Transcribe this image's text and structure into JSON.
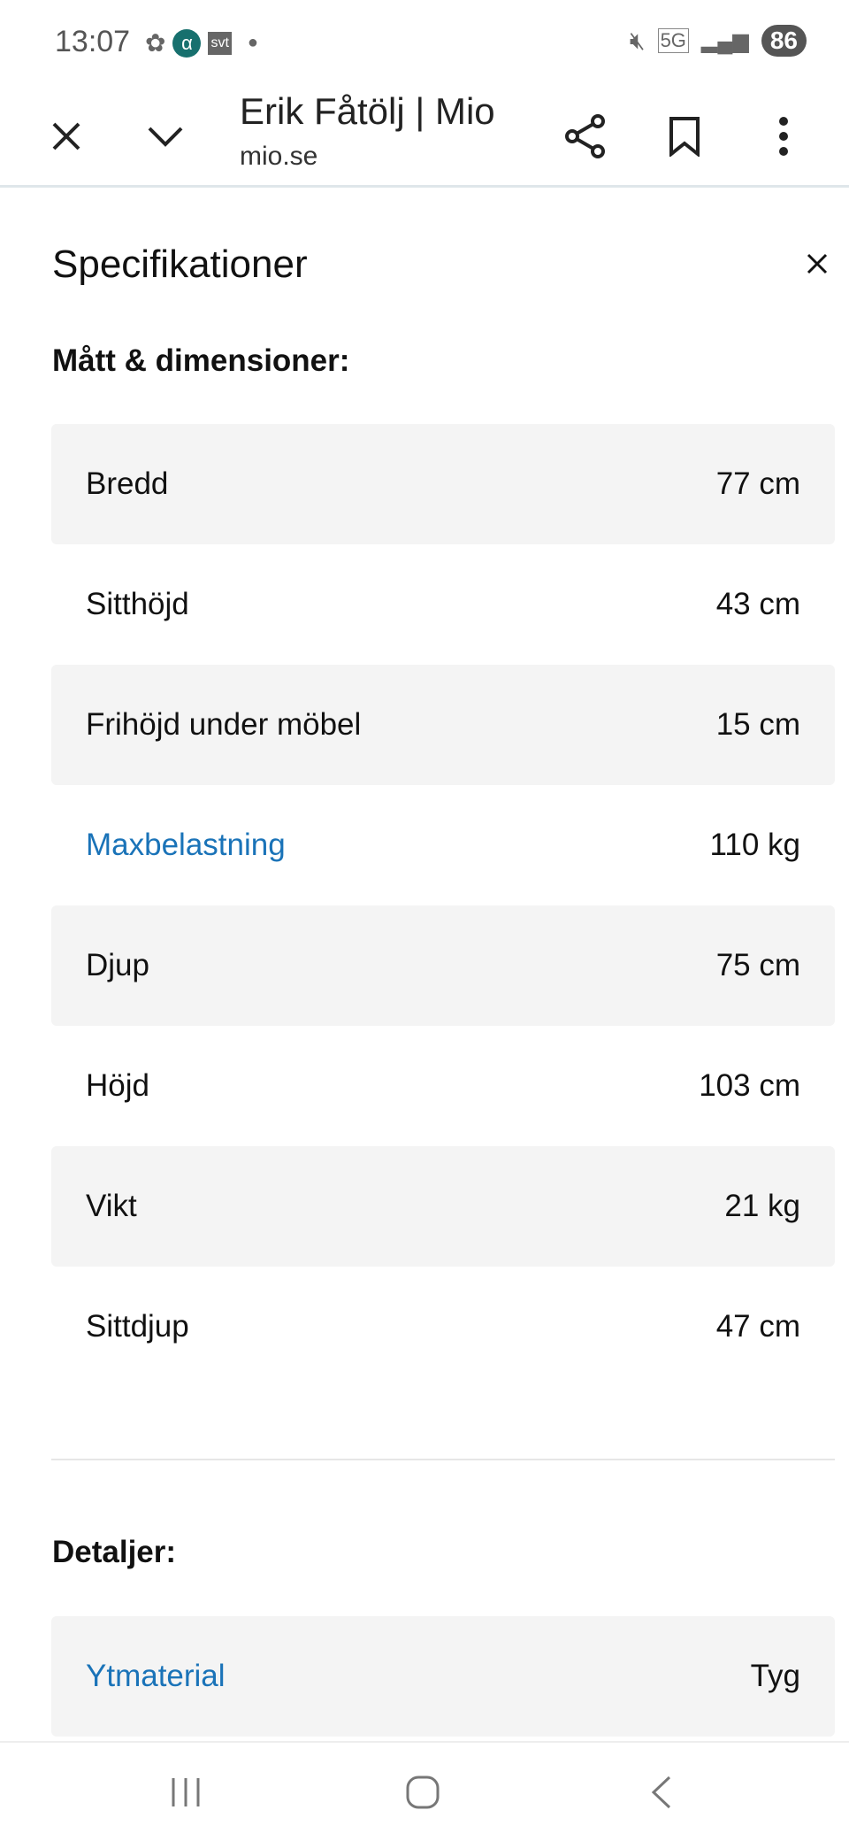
{
  "status_bar": {
    "time": "13:07",
    "network": "5G",
    "battery": "86",
    "app_icons": [
      "flower-icon",
      "alpha-app-icon",
      "svt-icon",
      "dot-icon"
    ],
    "svt_label": "svt"
  },
  "toolbar": {
    "title": "Erik Fåtölj | Mio",
    "url": "mio.se"
  },
  "sheet": {
    "title": "Specifikationer",
    "sections": [
      {
        "heading": "Mått & dimensioner:",
        "rows": [
          {
            "label": "Bredd",
            "value": "77 cm",
            "link": false
          },
          {
            "label": "Sitthöjd",
            "value": "43 cm",
            "link": false
          },
          {
            "label": "Frihöjd under möbel",
            "value": "15 cm",
            "link": false
          },
          {
            "label": "Maxbelastning",
            "value": "110 kg",
            "link": true
          },
          {
            "label": "Djup",
            "value": "75 cm",
            "link": false
          },
          {
            "label": "Höjd",
            "value": "103 cm",
            "link": false
          },
          {
            "label": "Vikt",
            "value": "21 kg",
            "link": false
          },
          {
            "label": "Sittdjup",
            "value": "47 cm",
            "link": false
          }
        ]
      },
      {
        "heading": "Detaljer:",
        "rows": [
          {
            "label": "Ytmaterial",
            "value": "Tyg",
            "link": true
          }
        ]
      }
    ]
  },
  "colors": {
    "link": "#1a73b8",
    "row_shade": "#f4f4f4"
  }
}
